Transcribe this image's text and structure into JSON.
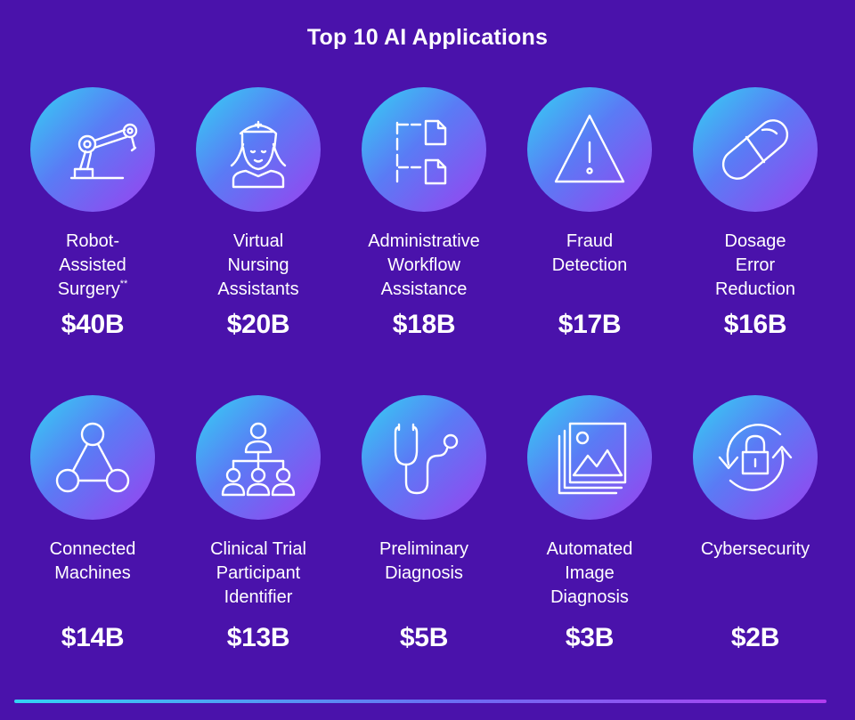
{
  "title": "Top 10 AI Applications",
  "colors": {
    "background": "#4a12ab",
    "circle_gradient": [
      "#33d3f4",
      "#5a7bf5",
      "#9b40ef"
    ],
    "text": "#ffffff"
  },
  "items": [
    {
      "icon": "robot-arm-icon",
      "label_lines": [
        "Robot-",
        "Assisted",
        "Surgery"
      ],
      "superscript": "**",
      "value": "$40B"
    },
    {
      "icon": "nurse-icon",
      "label_lines": [
        "Virtual",
        "Nursing",
        "Assistants"
      ],
      "value": "$20B"
    },
    {
      "icon": "workflow-documents-icon",
      "label_lines": [
        "Administrative",
        "Workflow",
        "Assistance"
      ],
      "value": "$18B"
    },
    {
      "icon": "warning-triangle-icon",
      "label_lines": [
        "Fraud",
        "Detection"
      ],
      "value": "$17B"
    },
    {
      "icon": "pill-capsule-icon",
      "label_lines": [
        "Dosage",
        "Error",
        "Reduction"
      ],
      "value": "$16B"
    },
    {
      "icon": "connected-nodes-icon",
      "label_lines": [
        "Connected",
        "Machines"
      ],
      "value": "$14B"
    },
    {
      "icon": "people-hierarchy-icon",
      "label_lines": [
        "Clinical Trial",
        "Participant",
        "Identifier"
      ],
      "value": "$13B"
    },
    {
      "icon": "stethoscope-icon",
      "label_lines": [
        "Preliminary",
        "Diagnosis"
      ],
      "value": "$5B"
    },
    {
      "icon": "image-stack-icon",
      "label_lines": [
        "Automated",
        "Image",
        "Diagnosis"
      ],
      "value": "$3B"
    },
    {
      "icon": "lock-refresh-icon",
      "label_lines": [
        "Cybersecurity"
      ],
      "value": "$2B"
    }
  ]
}
